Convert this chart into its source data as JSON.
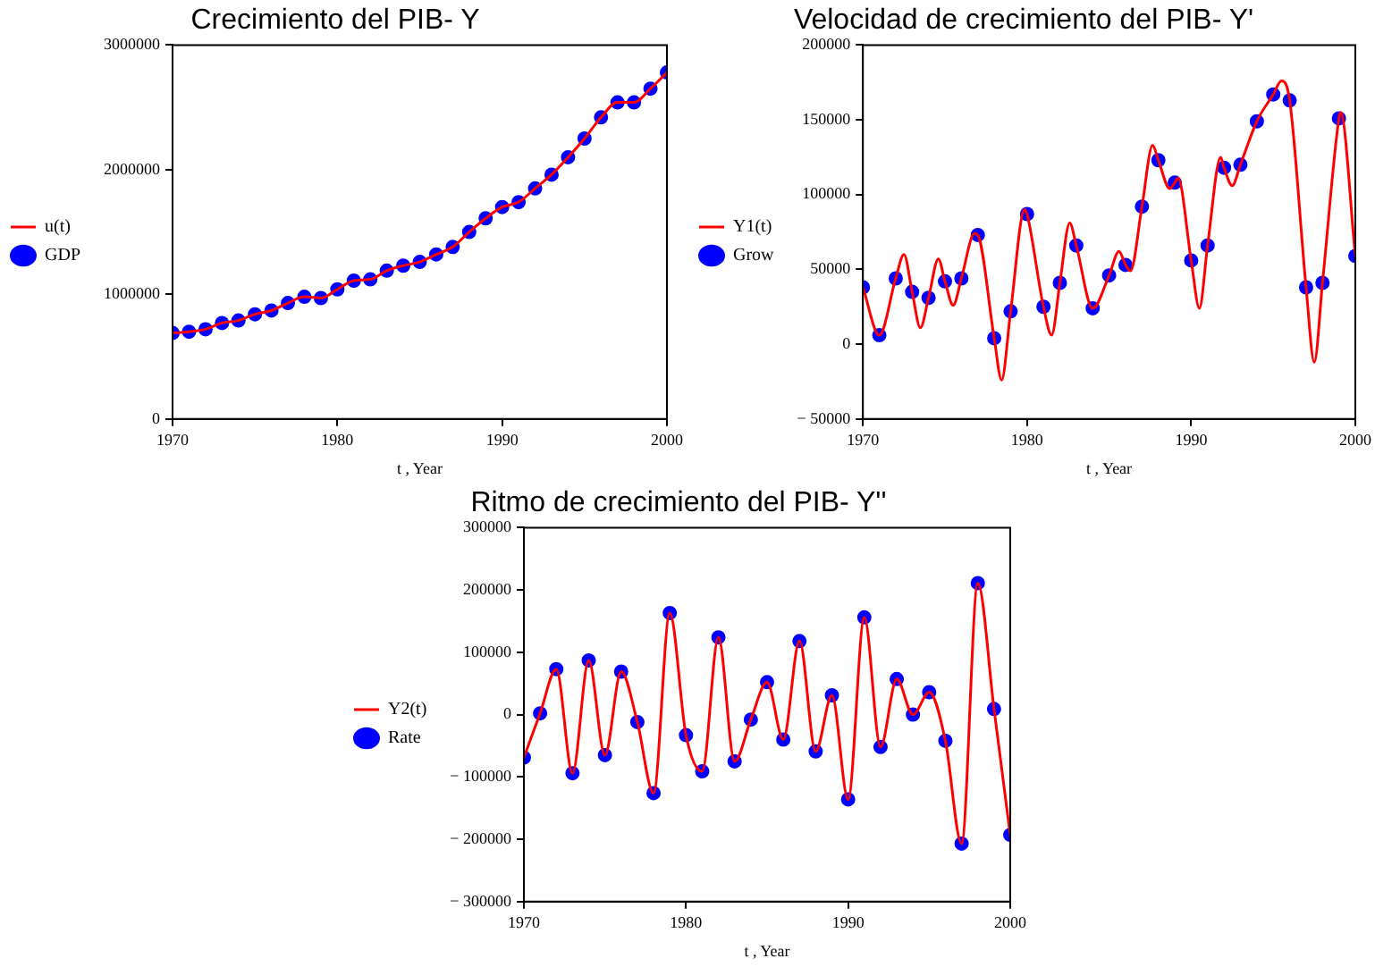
{
  "chart_data": [
    {
      "type": "line",
      "title": "Crecimiento del PIB- Y",
      "xlabel": "t , Year",
      "legend": "left",
      "xlim": [
        1970,
        2000
      ],
      "xticks": [
        1970,
        1980,
        1990,
        2000
      ],
      "ylim": [
        0,
        3000000
      ],
      "yticks": [
        0,
        1000000,
        2000000,
        3000000
      ],
      "x": [
        1970,
        1971,
        1972,
        1973,
        1974,
        1975,
        1976,
        1977,
        1978,
        1979,
        1980,
        1981,
        1982,
        1983,
        1984,
        1985,
        1986,
        1987,
        1988,
        1989,
        1990,
        1991,
        1992,
        1993,
        1994,
        1995,
        1996,
        1997,
        1998,
        1999,
        2000
      ],
      "series": [
        {
          "name": "u(t)",
          "marker": "none",
          "color": "#ff0000",
          "values": [
            690000,
            700000,
            720000,
            770000,
            790000,
            840000,
            870000,
            930000,
            980000,
            970000,
            1040000,
            1110000,
            1120000,
            1190000,
            1230000,
            1260000,
            1320000,
            1380000,
            1500000,
            1610000,
            1700000,
            1740000,
            1850000,
            1960000,
            2100000,
            2250000,
            2420000,
            2540000,
            2540000,
            2650000,
            2780000
          ]
        },
        {
          "name": "GDP",
          "type": "scatter",
          "marker": "circle",
          "color": "#0000ff",
          "values": [
            690000,
            700000,
            720000,
            770000,
            790000,
            840000,
            870000,
            930000,
            980000,
            970000,
            1040000,
            1110000,
            1120000,
            1190000,
            1230000,
            1260000,
            1320000,
            1380000,
            1500000,
            1610000,
            1700000,
            1740000,
            1850000,
            1960000,
            2100000,
            2250000,
            2420000,
            2540000,
            2540000,
            2650000,
            2780000
          ]
        }
      ]
    },
    {
      "type": "line",
      "title": "Velocidad de crecimiento del PIB- Y'",
      "xlabel": "t , Year",
      "legend": "left",
      "xlim": [
        1970,
        2000
      ],
      "xticks": [
        1970,
        1980,
        1990,
        2000
      ],
      "ylim": [
        -50000,
        200000
      ],
      "yticks": [
        {
          "value": -50000,
          "label": "− 50000"
        },
        0,
        50000,
        100000,
        150000,
        200000
      ],
      "x": [
        1970,
        1971,
        1972,
        1973,
        1974,
        1975,
        1976,
        1977,
        1978,
        1979,
        1980,
        1981,
        1982,
        1983,
        1984,
        1985,
        1986,
        1987,
        1988,
        1989,
        1990,
        1991,
        1992,
        1993,
        1994,
        1995,
        1996,
        1997,
        1998,
        1999,
        2000
      ],
      "series": [
        {
          "name": "Y1(t)",
          "marker": "none",
          "color": "#ff0000",
          "x": [
            1970,
            1971,
            1972,
            1972.5,
            1973,
            1973.5,
            1974,
            1974.6,
            1975,
            1975.5,
            1976,
            1976.8,
            1977,
            1978,
            1978.45,
            1979,
            1979.85,
            1980,
            1981,
            1981.5,
            1982,
            1982.6,
            1983,
            1984,
            1985,
            1985.6,
            1986,
            1986.3,
            1987,
            1987.65,
            1988,
            1988.7,
            1989,
            1989.2,
            1990,
            1990.5,
            1991,
            1991.8,
            1992,
            1992.5,
            1993,
            1994,
            1995,
            1995.5,
            1996,
            1997,
            1997.5,
            1998,
            1999,
            1999.1,
            2000
          ],
          "values": [
            38000,
            6000,
            44000,
            60000,
            35000,
            11000,
            31000,
            57000,
            42000,
            26000,
            44000,
            74000,
            73000,
            4000,
            -24000,
            22000,
            90000,
            87000,
            25000,
            6000,
            41000,
            81000,
            66000,
            24000,
            46000,
            62000,
            53000,
            49000,
            92000,
            133000,
            123000,
            104000,
            108000,
            111000,
            56000,
            24000,
            66000,
            125000,
            118000,
            106000,
            120000,
            149000,
            167000,
            176000,
            163000,
            38000,
            -12000,
            41000,
            151000,
            155000,
            59000
          ]
        },
        {
          "name": "Grow",
          "type": "scatter",
          "marker": "circle",
          "color": "#0000ff",
          "values": [
            38000,
            6000,
            44000,
            35000,
            31000,
            42000,
            44000,
            73000,
            4000,
            22000,
            87000,
            25000,
            41000,
            66000,
            24000,
            46000,
            53000,
            92000,
            123000,
            108000,
            56000,
            66000,
            118000,
            120000,
            149000,
            167000,
            163000,
            38000,
            41000,
            151000,
            59000
          ]
        }
      ]
    },
    {
      "type": "line",
      "title": "Ritmo de crecimiento del PIB- Y''",
      "xlabel": "t , Year",
      "legend": "left",
      "xlim": [
        1970,
        2000
      ],
      "xticks": [
        1970,
        1980,
        1990,
        2000
      ],
      "ylim": [
        -300000,
        300000
      ],
      "yticks": [
        {
          "value": -300000,
          "label": "− 300000"
        },
        {
          "value": -200000,
          "label": "− 200000"
        },
        {
          "value": -100000,
          "label": "− 100000"
        },
        0,
        100000,
        200000,
        300000
      ],
      "x": [
        1970,
        1971,
        1972,
        1973,
        1974,
        1975,
        1976,
        1977,
        1978,
        1979,
        1980,
        1981,
        1982,
        1983,
        1984,
        1985,
        1986,
        1987,
        1988,
        1989,
        1990,
        1991,
        1992,
        1993,
        1994,
        1995,
        1996,
        1997,
        1998,
        1999,
        2000
      ],
      "series": [
        {
          "name": "Y2(t)",
          "marker": "none",
          "color": "#ff0000",
          "values": [
            -69000,
            2000,
            73000,
            -94000,
            87000,
            -65000,
            69000,
            -12000,
            -126000,
            163000,
            -33000,
            -91000,
            124000,
            -75000,
            -8000,
            52000,
            -40000,
            118000,
            -59000,
            31000,
            -136000,
            156000,
            -52000,
            57000,
            0,
            36000,
            -42000,
            -207000,
            211000,
            9000,
            -193000
          ]
        },
        {
          "name": "Rate",
          "type": "scatter",
          "marker": "circle",
          "color": "#0000ff",
          "values": [
            -69000,
            2000,
            73000,
            -94000,
            87000,
            -65000,
            69000,
            -12000,
            -126000,
            163000,
            -33000,
            -91000,
            124000,
            -75000,
            -8000,
            52000,
            -40000,
            118000,
            -59000,
            31000,
            -136000,
            156000,
            -52000,
            57000,
            0,
            36000,
            -42000,
            -207000,
            211000,
            9000,
            -193000
          ]
        }
      ]
    }
  ]
}
